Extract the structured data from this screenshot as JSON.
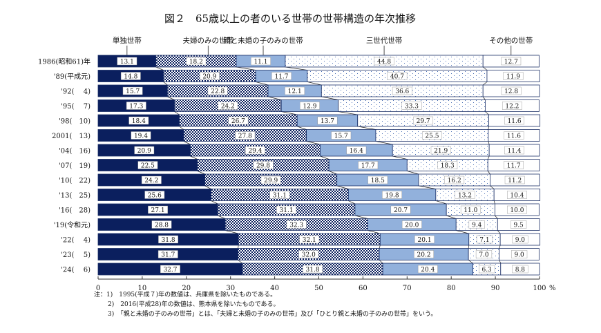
{
  "chart_data": {
    "type": "bar",
    "orientation": "horizontal",
    "stacked": true,
    "title": "図２　65歳以上の者のいる世帯の世帯構造の年次推移",
    "categories": [
      "1986(昭和61)年",
      "'89(平成元)",
      "'92(　 4)",
      "'95(　 7)",
      "'98(　10)",
      "2001(　13)",
      "'04(　16)",
      "'07(　19)",
      "'10(　22)",
      "'13(　25)",
      "'16(　28)",
      "'19(令和元)",
      "'22(　 4)",
      "'23(　 5)",
      "'24(　 6)"
    ],
    "series": [
      {
        "name": "単独世帯",
        "color": "#0b1f5e",
        "pattern": "solid",
        "values": [
          13.1,
          14.8,
          15.7,
          17.3,
          18.4,
          19.4,
          20.9,
          22.5,
          24.2,
          25.6,
          27.1,
          28.8,
          31.8,
          31.7,
          32.7
        ]
      },
      {
        "name": "夫婦のみの世帯",
        "color": "#0b1f5e",
        "pattern": "checkered",
        "values": [
          18.2,
          20.9,
          22.8,
          24.2,
          26.7,
          27.8,
          29.4,
          29.8,
          29.9,
          31.1,
          31.1,
          32.3,
          32.1,
          32.0,
          31.8
        ]
      },
      {
        "name": "親と未婚の子のみの世帯",
        "color": "#92b1dc",
        "pattern": "solid",
        "values": [
          11.1,
          11.7,
          12.1,
          12.9,
          13.7,
          15.7,
          16.4,
          17.7,
          18.5,
          19.8,
          20.7,
          20.0,
          20.1,
          20.2,
          20.4
        ]
      },
      {
        "name": "三世代世帯",
        "color": "#4a6fb5",
        "pattern": "dotted",
        "values": [
          44.8,
          40.7,
          36.6,
          33.3,
          29.7,
          25.5,
          21.9,
          18.3,
          16.2,
          13.2,
          11.0,
          9.4,
          7.1,
          7.0,
          6.3
        ]
      },
      {
        "name": "その他の世帯",
        "color": "#ffffff",
        "pattern": "none",
        "values": [
          12.7,
          11.9,
          12.8,
          12.2,
          11.6,
          11.6,
          11.4,
          11.7,
          11.2,
          10.4,
          10.0,
          9.5,
          9.0,
          9.0,
          8.8
        ]
      }
    ],
    "xlim": [
      0,
      100
    ],
    "xticks": [
      "0",
      "10",
      "20",
      "30",
      "40",
      "50",
      "60",
      "70",
      "80",
      "90",
      "100"
    ],
    "xunit": "%",
    "legend_placement": "top",
    "grid": false
  },
  "notes": [
    "注：1)　1995(平成７)年の数値は、兵庫県を除いたものである。",
    "2)　2016(平成28)年の数値は、熊本県を除いたものである。",
    "3)　「親と未婚の子のみの世帯」とは、「夫婦と未婚の子のみの世帯」及び「ひとり親と未婚の子のみの世帯」をいう。"
  ]
}
